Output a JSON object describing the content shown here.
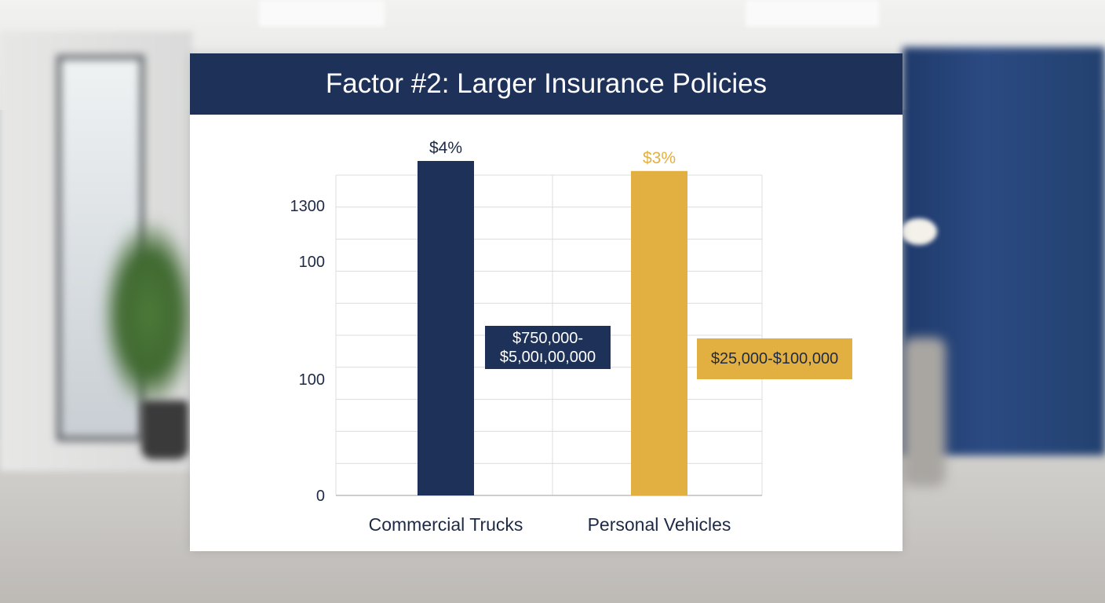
{
  "title": "Factor #2: Larger Insurance Policies",
  "colors": {
    "navy": "#1e3158",
    "gold": "#e1b041",
    "grid": "#dcdcdc"
  },
  "chart_data": {
    "type": "bar",
    "title": "Factor #2: Larger Insurance Policies",
    "categories": [
      "Commercial Trucks",
      "Personal Vehicles"
    ],
    "y_tick_labels": [
      "1300",
      "100",
      "100",
      "0"
    ],
    "bars": [
      {
        "category": "Commercial Trucks",
        "value_fraction": 1.0,
        "value_label": "$4%",
        "range_label": "$750,000-\n$5,00ı,00,000",
        "color": "#1e3158"
      },
      {
        "category": "Personal Vehicles",
        "value_fraction": 0.97,
        "value_label": "$3%",
        "range_label": "$25,000-$100,000",
        "color": "#e1b041"
      }
    ],
    "grid": true
  }
}
